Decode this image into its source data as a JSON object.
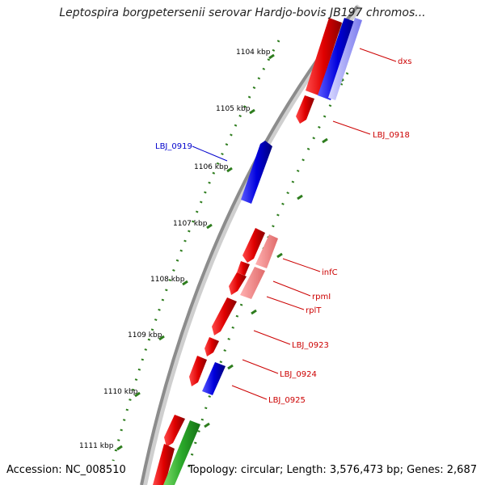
{
  "title": "Leptospira borgpetersenii serovar Hardjo-bovis JB197 chromos...",
  "footer": {
    "accession": "Accession: NC_008510",
    "topology": "Topology: circular; Length: 3,576,473 bp; Genes: 2,687"
  },
  "ticks": [
    {
      "label": "1104 kbp"
    },
    {
      "label": "1105 kbp"
    },
    {
      "label": "1106 kbp"
    },
    {
      "label": "1107 kbp"
    },
    {
      "label": "1108 kbp"
    },
    {
      "label": "1109 kbp"
    },
    {
      "label": "1110 kbp"
    },
    {
      "label": "1111 kbp"
    }
  ],
  "genes": [
    {
      "name": "dxs",
      "color": "#cc0000"
    },
    {
      "name": "LBJ_0918",
      "color": "#cc0000"
    },
    {
      "name": "LBJ_0919",
      "color": "#0000cc"
    },
    {
      "name": "infC",
      "color": "#cc0000"
    },
    {
      "name": "rpmI",
      "color": "#cc0000"
    },
    {
      "name": "rplT",
      "color": "#cc0000"
    },
    {
      "name": "LBJ_0923",
      "color": "#cc0000"
    },
    {
      "name": "LBJ_0924",
      "color": "#cc0000"
    },
    {
      "name": "LBJ_0925",
      "color": "#cc0000"
    }
  ]
}
